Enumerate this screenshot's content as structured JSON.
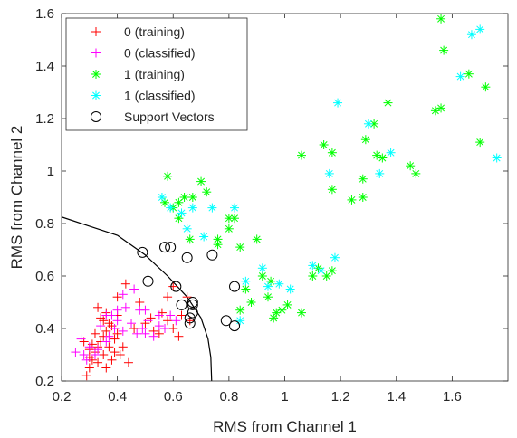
{
  "chart_data": {
    "type": "scatter",
    "xlabel": "RMS from Channel 1",
    "ylabel": "RMS from Channel 2",
    "xlim": [
      0.2,
      1.8
    ],
    "ylim": [
      0.2,
      1.6
    ],
    "xticks": [
      0.2,
      0.4,
      0.6,
      0.8,
      1,
      1.2,
      1.4,
      1.6
    ],
    "yticks": [
      0.2,
      0.4,
      0.6,
      0.8,
      1,
      1.2,
      1.4,
      1.6
    ],
    "legend_position": "top-left",
    "series": [
      {
        "name": "0 (training)",
        "marker": "plus",
        "color": "#ff0000",
        "points": [
          [
            0.29,
            0.22
          ],
          [
            0.3,
            0.25
          ],
          [
            0.31,
            0.28
          ],
          [
            0.32,
            0.31
          ],
          [
            0.33,
            0.33
          ],
          [
            0.34,
            0.35
          ],
          [
            0.35,
            0.37
          ],
          [
            0.36,
            0.39
          ],
          [
            0.37,
            0.42
          ],
          [
            0.34,
            0.44
          ],
          [
            0.36,
            0.46
          ],
          [
            0.33,
            0.48
          ],
          [
            0.35,
            0.3
          ],
          [
            0.38,
            0.28
          ],
          [
            0.37,
            0.33
          ],
          [
            0.39,
            0.36
          ],
          [
            0.4,
            0.38
          ],
          [
            0.38,
            0.41
          ],
          [
            0.4,
            0.45
          ],
          [
            0.35,
            0.43
          ],
          [
            0.31,
            0.34
          ],
          [
            0.3,
            0.29
          ],
          [
            0.36,
            0.25
          ],
          [
            0.41,
            0.3
          ],
          [
            0.44,
            0.27
          ],
          [
            0.4,
            0.52
          ],
          [
            0.43,
            0.57
          ],
          [
            0.48,
            0.5
          ],
          [
            0.46,
            0.4
          ],
          [
            0.5,
            0.42
          ],
          [
            0.52,
            0.44
          ],
          [
            0.55,
            0.38
          ],
          [
            0.58,
            0.43
          ],
          [
            0.53,
            0.39
          ],
          [
            0.6,
            0.4
          ],
          [
            0.62,
            0.37
          ],
          [
            0.63,
            0.45
          ],
          [
            0.6,
            0.56
          ],
          [
            0.65,
            0.52
          ],
          [
            0.56,
            0.46
          ],
          [
            0.66,
            0.43
          ],
          [
            0.58,
            0.52
          ],
          [
            0.32,
            0.38
          ],
          [
            0.28,
            0.35
          ],
          [
            0.3,
            0.32
          ],
          [
            0.33,
            0.27
          ],
          [
            0.39,
            0.31
          ],
          [
            0.42,
            0.33
          ]
        ]
      },
      {
        "name": "0 (classified)",
        "marker": "plus",
        "color": "#ff00ff",
        "points": [
          [
            0.25,
            0.31
          ],
          [
            0.27,
            0.36
          ],
          [
            0.28,
            0.3
          ],
          [
            0.3,
            0.33
          ],
          [
            0.32,
            0.3
          ],
          [
            0.33,
            0.32
          ],
          [
            0.34,
            0.41
          ],
          [
            0.36,
            0.35
          ],
          [
            0.37,
            0.37
          ],
          [
            0.39,
            0.4
          ],
          [
            0.4,
            0.43
          ],
          [
            0.42,
            0.39
          ],
          [
            0.43,
            0.48
          ],
          [
            0.45,
            0.42
          ],
          [
            0.47,
            0.38
          ],
          [
            0.48,
            0.47
          ],
          [
            0.49,
            0.4
          ],
          [
            0.5,
            0.38
          ],
          [
            0.51,
            0.43
          ],
          [
            0.53,
            0.37
          ],
          [
            0.55,
            0.41
          ],
          [
            0.57,
            0.4
          ],
          [
            0.59,
            0.45
          ],
          [
            0.61,
            0.43
          ],
          [
            0.42,
            0.53
          ],
          [
            0.46,
            0.55
          ],
          [
            0.4,
            0.47
          ],
          [
            0.38,
            0.45
          ],
          [
            0.29,
            0.28
          ],
          [
            0.36,
            0.45
          ],
          [
            0.5,
            0.47
          ],
          [
            0.55,
            0.45
          ]
        ]
      },
      {
        "name": "1 (training)",
        "marker": "asterisk",
        "color": "#00ff00",
        "points": [
          [
            0.57,
            0.88
          ],
          [
            0.58,
            0.98
          ],
          [
            0.6,
            0.86
          ],
          [
            0.62,
            0.88
          ],
          [
            0.64,
            0.9
          ],
          [
            0.67,
            0.9
          ],
          [
            0.7,
            0.96
          ],
          [
            0.72,
            0.92
          ],
          [
            0.76,
            0.74
          ],
          [
            0.8,
            0.78
          ],
          [
            0.82,
            0.82
          ],
          [
            0.84,
            0.71
          ],
          [
            0.86,
            0.55
          ],
          [
            0.88,
            0.5
          ],
          [
            0.9,
            0.74
          ],
          [
            0.92,
            0.6
          ],
          [
            0.95,
            0.58
          ],
          [
            0.96,
            0.44
          ],
          [
            0.97,
            0.46
          ],
          [
            0.99,
            0.47
          ],
          [
            1.01,
            0.49
          ],
          [
            1.06,
            0.46
          ],
          [
            1.1,
            0.6
          ],
          [
            1.12,
            0.63
          ],
          [
            1.15,
            0.6
          ],
          [
            1.17,
            0.62
          ],
          [
            1.06,
            1.06
          ],
          [
            1.14,
            1.1
          ],
          [
            1.17,
            1.07
          ],
          [
            1.17,
            0.93
          ],
          [
            1.24,
            0.89
          ],
          [
            1.28,
            0.9
          ],
          [
            1.28,
            0.97
          ],
          [
            1.29,
            1.12
          ],
          [
            1.32,
            1.18
          ],
          [
            1.33,
            1.06
          ],
          [
            1.35,
            1.05
          ],
          [
            1.37,
            1.26
          ],
          [
            1.45,
            1.02
          ],
          [
            1.47,
            0.99
          ],
          [
            1.54,
            1.23
          ],
          [
            1.56,
            1.24
          ],
          [
            1.56,
            1.58
          ],
          [
            1.57,
            1.46
          ],
          [
            1.66,
            1.37
          ],
          [
            1.7,
            1.11
          ],
          [
            1.72,
            1.32
          ],
          [
            0.76,
            0.72
          ],
          [
            0.8,
            0.82
          ],
          [
            0.62,
            0.82
          ],
          [
            0.66,
            0.74
          ],
          [
            0.94,
            0.52
          ],
          [
            0.84,
            0.47
          ]
        ]
      },
      {
        "name": "1 (classified)",
        "marker": "asterisk",
        "color": "#00ffff",
        "points": [
          [
            0.56,
            0.9
          ],
          [
            0.59,
            0.86
          ],
          [
            0.63,
            0.84
          ],
          [
            0.67,
            0.86
          ],
          [
            0.71,
            0.75
          ],
          [
            0.74,
            0.86
          ],
          [
            0.82,
            0.86
          ],
          [
            0.84,
            0.43
          ],
          [
            0.92,
            0.63
          ],
          [
            0.94,
            0.56
          ],
          [
            0.98,
            0.57
          ],
          [
            1.02,
            0.55
          ],
          [
            1.1,
            0.64
          ],
          [
            1.13,
            0.62
          ],
          [
            1.16,
            0.99
          ],
          [
            1.18,
            0.67
          ],
          [
            1.19,
            1.26
          ],
          [
            1.3,
            1.18
          ],
          [
            1.34,
            0.99
          ],
          [
            1.38,
            1.07
          ],
          [
            1.63,
            1.36
          ],
          [
            1.67,
            1.52
          ],
          [
            1.7,
            1.54
          ],
          [
            1.76,
            1.05
          ],
          [
            0.65,
            0.78
          ],
          [
            0.86,
            0.58
          ]
        ]
      },
      {
        "name": "Support Vectors",
        "marker": "circle",
        "color": "#000000",
        "points": [
          [
            0.49,
            0.69
          ],
          [
            0.51,
            0.58
          ],
          [
            0.57,
            0.71
          ],
          [
            0.59,
            0.71
          ],
          [
            0.61,
            0.56
          ],
          [
            0.63,
            0.49
          ],
          [
            0.65,
            0.67
          ],
          [
            0.66,
            0.42
          ],
          [
            0.66,
            0.44
          ],
          [
            0.67,
            0.46
          ],
          [
            0.67,
            0.49
          ],
          [
            0.67,
            0.5
          ],
          [
            0.74,
            0.68
          ],
          [
            0.79,
            0.43
          ],
          [
            0.82,
            0.41
          ],
          [
            0.82,
            0.56
          ]
        ]
      }
    ],
    "decision_boundary": {
      "color": "#000000",
      "points": [
        [
          0.2,
          0.825
        ],
        [
          0.3,
          0.79
        ],
        [
          0.4,
          0.755
        ],
        [
          0.5,
          0.68
        ],
        [
          0.58,
          0.6
        ],
        [
          0.65,
          0.52
        ],
        [
          0.7,
          0.44
        ],
        [
          0.725,
          0.36
        ],
        [
          0.735,
          0.29
        ],
        [
          0.738,
          0.2
        ]
      ]
    }
  }
}
